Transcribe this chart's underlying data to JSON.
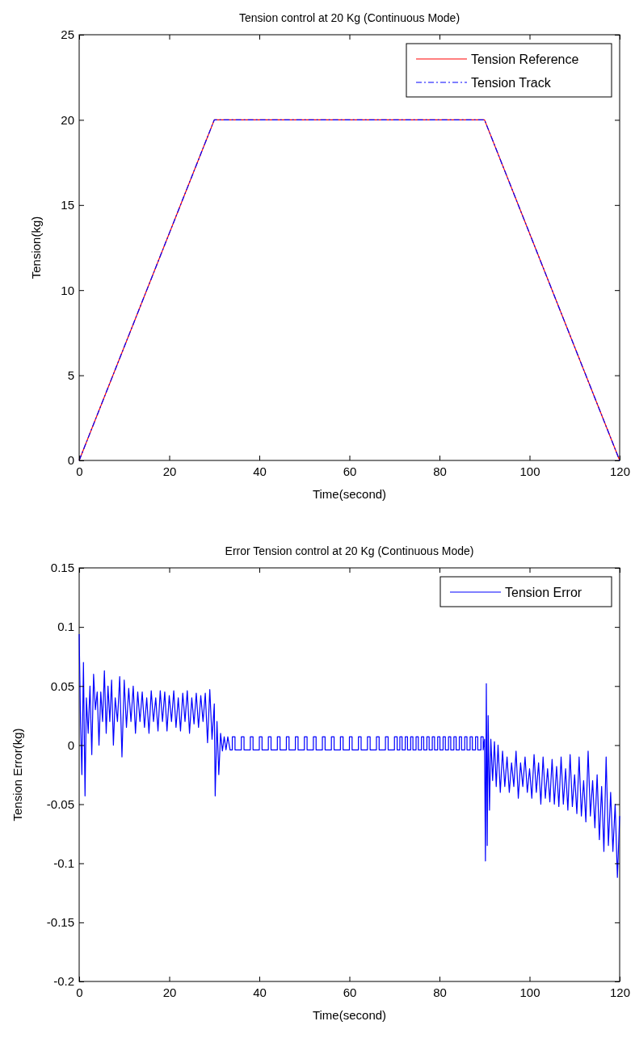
{
  "chart_data": [
    {
      "type": "line",
      "title": "Tension control at 20 Kg (Continuous Mode)",
      "xlabel": "Time(second)",
      "ylabel": "Tension(kg)",
      "xlim": [
        0,
        120
      ],
      "xticks": [
        0,
        20,
        40,
        60,
        80,
        100,
        120
      ],
      "ylim": [
        0,
        25
      ],
      "yticks": [
        0,
        5,
        10,
        15,
        20,
        25
      ],
      "grid": false,
      "legend": "top right",
      "marker": "none",
      "series": [
        {
          "name": "Tension Reference",
          "color": "#ff0000",
          "line_style": "solid",
          "x": [
            0,
            30,
            90,
            120
          ],
          "values": [
            0,
            20,
            20,
            0
          ]
        },
        {
          "name": "Tension Track",
          "color": "#0000ff",
          "line_style": "dashed",
          "x": [
            0,
            30,
            90,
            120
          ],
          "values": [
            0,
            20,
            20,
            0
          ]
        }
      ]
    },
    {
      "type": "line",
      "title": "Error Tension control at 20 Kg (Continuous Mode)",
      "xlabel": "Time(second)",
      "ylabel": "Tension Error(kg)",
      "xlim": [
        0,
        120
      ],
      "xticks": [
        0,
        20,
        40,
        60,
        80,
        100,
        120
      ],
      "ylim": [
        -0.2,
        0.15
      ],
      "yticks": [
        -0.2,
        -0.15,
        -0.1,
        -0.05,
        0,
        0.05,
        0.1,
        0.15
      ],
      "grid": false,
      "legend": "top right",
      "marker": "none",
      "series": [
        {
          "name": "Tension Error",
          "color": "#0000ff",
          "line_style": "solid",
          "x": [
            0,
            0.3,
            0.6,
            0.95,
            1.3,
            1.6,
            2,
            2.4,
            2.8,
            3.2,
            3.6,
            4,
            4.4,
            4.8,
            5.2,
            5.6,
            6,
            6.4,
            6.8,
            7.2,
            7.6,
            8,
            8.5,
            9,
            9.5,
            10,
            10.5,
            11,
            11.5,
            12,
            12.5,
            13,
            13.5,
            14,
            14.5,
            15,
            15.5,
            16,
            16.5,
            17,
            17.5,
            18,
            18.5,
            19,
            19.5,
            20,
            20.5,
            21,
            21.5,
            22,
            22.5,
            23,
            23.5,
            24,
            24.5,
            25,
            25.5,
            26,
            26.5,
            27,
            27.5,
            28,
            28.5,
            29,
            29.5,
            30,
            30.2,
            30.6,
            31,
            31.4,
            31.8,
            32.2,
            32.6,
            33,
            33.5,
            34,
            34,
            34.6,
            34.6,
            36,
            36,
            36.6,
            36.6,
            38,
            38,
            38.6,
            38.6,
            40,
            40,
            40.6,
            40.6,
            42,
            42,
            42.6,
            42.6,
            44,
            44,
            44.6,
            44.6,
            46,
            46,
            46.6,
            46.6,
            48,
            48,
            48.6,
            48.6,
            50,
            50,
            50.6,
            50.6,
            52,
            52,
            52.6,
            52.6,
            54,
            54,
            54.6,
            54.6,
            56,
            56,
            56.6,
            56.6,
            58,
            58,
            58.6,
            58.6,
            60,
            60,
            60.6,
            60.6,
            62,
            62,
            62.6,
            62.6,
            64,
            64,
            64.6,
            64.6,
            66,
            66,
            66.6,
            66.6,
            68,
            68,
            68.6,
            68.6,
            70,
            70,
            70.6,
            70.6,
            71.2,
            71.2,
            71.7,
            71.7,
            72.4,
            72.4,
            72.9,
            72.9,
            73.6,
            73.6,
            74.1,
            74.1,
            74.8,
            74.8,
            75.3,
            75.3,
            76,
            76,
            76.5,
            76.5,
            77.2,
            77.2,
            77.7,
            77.7,
            78.4,
            78.4,
            78.9,
            78.9,
            79.6,
            79.6,
            80.1,
            80.1,
            80.8,
            80.8,
            81.3,
            81.3,
            82,
            82,
            82.5,
            82.5,
            83.2,
            83.2,
            83.7,
            83.7,
            84.4,
            84.4,
            84.9,
            84.9,
            85.6,
            85.6,
            86.1,
            86.1,
            86.8,
            86.8,
            87.3,
            87.3,
            88,
            88,
            88.5,
            88.5,
            89.2,
            89.2,
            89.7,
            89.7,
            90,
            90.2,
            90.4,
            90.6,
            90.8,
            91.1,
            91.4,
            91.8,
            92.2,
            92.6,
            93,
            93.5,
            94,
            94.5,
            95,
            95.5,
            96,
            96.5,
            97,
            97.5,
            98,
            98.5,
            99,
            99.5,
            100,
            100.5,
            101,
            101.5,
            102,
            102.5,
            103,
            103.5,
            104,
            104.5,
            105,
            105.5,
            106,
            106.5,
            107,
            107.5,
            108,
            108.5,
            109,
            109.5,
            110,
            110.5,
            111,
            111.5,
            112,
            112.5,
            113,
            113.5,
            114,
            114.5,
            115,
            115.5,
            116,
            116.5,
            117,
            117.5,
            118,
            118.5,
            119,
            119.5,
            120
          ],
          "values": [
            0.094,
            0.02,
            -0.025,
            0.07,
            -0.043,
            0.04,
            0.01,
            0.05,
            -0.008,
            0.06,
            0.03,
            0.045,
            0,
            0.045,
            0.02,
            0.063,
            0.01,
            0.05,
            0.02,
            0.055,
            0,
            0.04,
            0.02,
            0.058,
            -0.01,
            0.055,
            0.015,
            0.048,
            0.02,
            0.05,
            0.01,
            0.045,
            0.02,
            0.045,
            0.015,
            0.04,
            0.01,
            0.046,
            0.02,
            0.04,
            0.012,
            0.046,
            0.02,
            0.045,
            0.012,
            0.042,
            0.02,
            0.046,
            0.015,
            0.04,
            0.012,
            0.044,
            0.02,
            0.046,
            0.01,
            0.04,
            0.018,
            0.044,
            0.015,
            0.042,
            0.02,
            0.044,
            0.002,
            0.047,
            0.005,
            0.035,
            -0.043,
            0.02,
            -0.025,
            0.01,
            -0.005,
            0.007,
            -0.004,
            0.007,
            -0.004,
            -0.004,
            0.007,
            0.007,
            -0.004,
            -0.004,
            0.007,
            0.007,
            -0.004,
            -0.004,
            0.007,
            0.007,
            -0.004,
            -0.004,
            0.007,
            0.007,
            -0.004,
            -0.004,
            0.007,
            0.007,
            -0.004,
            -0.004,
            0.007,
            0.007,
            -0.004,
            -0.004,
            0.007,
            0.007,
            -0.004,
            -0.004,
            0.007,
            0.007,
            -0.004,
            -0.004,
            0.007,
            0.007,
            -0.004,
            -0.004,
            0.007,
            0.007,
            -0.004,
            -0.004,
            0.007,
            0.007,
            -0.004,
            -0.004,
            0.007,
            0.007,
            -0.004,
            -0.004,
            0.007,
            0.007,
            -0.004,
            -0.004,
            0.007,
            0.007,
            -0.004,
            -0.004,
            0.007,
            0.007,
            -0.004,
            -0.004,
            0.007,
            0.007,
            -0.004,
            -0.004,
            0.007,
            0.007,
            -0.004,
            -0.004,
            0.007,
            0.007,
            -0.004,
            -0.004,
            0.007,
            0.007,
            -0.004,
            -0.004,
            0.007,
            0.007,
            -0.004,
            -0.004,
            0.007,
            0.007,
            -0.004,
            -0.004,
            0.007,
            0.007,
            -0.004,
            -0.004,
            0.007,
            0.007,
            -0.004,
            -0.004,
            0.007,
            0.007,
            -0.004,
            -0.004,
            0.007,
            0.007,
            -0.004,
            -0.004,
            0.007,
            0.007,
            -0.004,
            -0.004,
            0.007,
            0.007,
            -0.004,
            -0.004,
            0.007,
            0.007,
            -0.004,
            -0.004,
            0.007,
            0.007,
            -0.004,
            -0.004,
            0.007,
            0.007,
            -0.004,
            -0.004,
            0.007,
            0.007,
            -0.004,
            -0.004,
            0.007,
            0.007,
            -0.004,
            -0.004,
            0.007,
            0.007,
            -0.004,
            -0.004,
            0.007,
            0.007,
            -0.004,
            -0.004,
            0.007,
            0.007,
            -0.004,
            0.005,
            -0.098,
            0.052,
            -0.085,
            0.025,
            -0.055,
            0.005,
            -0.03,
            0.003,
            -0.035,
            0,
            -0.04,
            -0.005,
            -0.035,
            -0.01,
            -0.04,
            -0.015,
            -0.035,
            -0.005,
            -0.045,
            -0.015,
            -0.035,
            -0.01,
            -0.04,
            -0.02,
            -0.045,
            -0.008,
            -0.04,
            -0.015,
            -0.05,
            -0.01,
            -0.045,
            -0.02,
            -0.048,
            -0.012,
            -0.05,
            -0.018,
            -0.052,
            -0.01,
            -0.05,
            -0.02,
            -0.055,
            -0.008,
            -0.052,
            -0.025,
            -0.058,
            -0.01,
            -0.06,
            -0.03,
            -0.065,
            -0.005,
            -0.06,
            -0.03,
            -0.07,
            -0.025,
            -0.08,
            -0.035,
            -0.09,
            -0.01,
            -0.085,
            -0.04,
            -0.09,
            -0.05,
            -0.112,
            -0.06
          ]
        }
      ]
    }
  ]
}
